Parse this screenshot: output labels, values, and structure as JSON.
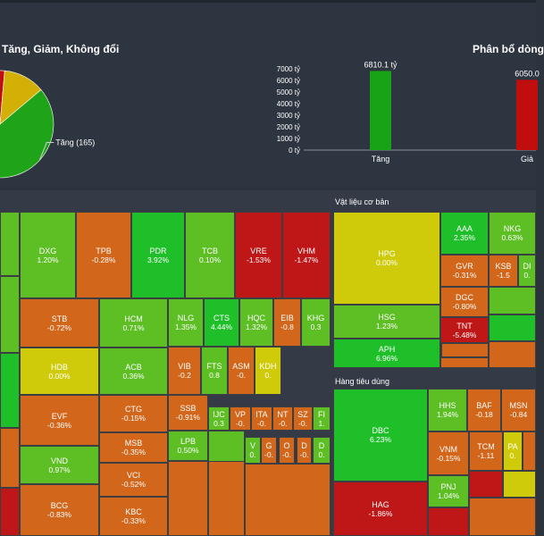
{
  "headers": {
    "pie_title": "Tăng, Giảm, Không đổi",
    "bar_title": "Phân bổ dòng",
    "sector_materials": "Vật liệu cơ bản",
    "sector_consumer": "Hàng tiêu dùng"
  },
  "colors": {
    "strong_up": "#1fbf2a",
    "up": "#5dbf24",
    "flat": "#cfcb0a",
    "down": "#d2661b",
    "strong_down": "#bf1717",
    "panel_bg": "#2d3540"
  },
  "chart_data": [
    {
      "type": "pie",
      "title": "Tăng, Giảm, Không đổi",
      "slices": [
        {
          "label": "Tăng (165)",
          "value": 165,
          "color": "#1fa419"
        },
        {
          "label": "",
          "value": 150,
          "color": "#c00d0d"
        },
        {
          "label": "",
          "value": 45,
          "color": "#d3b006"
        }
      ]
    },
    {
      "type": "bar",
      "title": "Phân bổ dòng",
      "categories": [
        "Tăng",
        "Giả"
      ],
      "values": [
        6810.1,
        6050.0
      ],
      "value_labels": [
        "6810.1 tỷ",
        "6050.0"
      ],
      "colors": [
        "#16a416",
        "#c00d0d"
      ],
      "ylim": [
        0,
        7000
      ],
      "yticks": [
        "0 tỷ",
        "1000 tỷ",
        "2000 tỷ",
        "3000 tỷ",
        "4000 tỷ",
        "5000 tỷ",
        "6000 tỷ",
        "7000 tỷ"
      ]
    },
    {
      "type": "heatmap",
      "tiles": [
        {
          "sym": "DXG",
          "pct": "1.20%",
          "tone": "up"
        },
        {
          "sym": "TPB",
          "pct": "-0.28%",
          "tone": "down"
        },
        {
          "sym": "PDR",
          "pct": "3.92%",
          "tone": "strong_up"
        },
        {
          "sym": "TCB",
          "pct": "0.10%",
          "tone": "up"
        },
        {
          "sym": "VRE",
          "pct": "-1.53%",
          "tone": "strong_down"
        },
        {
          "sym": "VHM",
          "pct": "-1.47%",
          "tone": "strong_down"
        },
        {
          "sym": "STB",
          "pct": "-0.72%",
          "tone": "down"
        },
        {
          "sym": "HCM",
          "pct": "0.71%",
          "tone": "up"
        },
        {
          "sym": "NLG",
          "pct": "1.35%",
          "tone": "up"
        },
        {
          "sym": "CTS",
          "pct": "4.44%",
          "tone": "strong_up"
        },
        {
          "sym": "HQC",
          "pct": "1.32%",
          "tone": "up"
        },
        {
          "sym": "EIB",
          "pct": "-0.8",
          "tone": "down"
        },
        {
          "sym": "KHG",
          "pct": "0.3",
          "tone": "up"
        },
        {
          "sym": "HDB",
          "pct": "0.00%",
          "tone": "flat"
        },
        {
          "sym": "ACB",
          "pct": "0.36%",
          "tone": "up"
        },
        {
          "sym": "VIB",
          "pct": "-0.2",
          "tone": "down"
        },
        {
          "sym": "FTS",
          "pct": "0.8",
          "tone": "up"
        },
        {
          "sym": "ASM",
          "pct": "-0.",
          "tone": "down"
        },
        {
          "sym": "KDH",
          "pct": "0.",
          "tone": "flat"
        },
        {
          "sym": "EVF",
          "pct": "-0.36%",
          "tone": "down"
        },
        {
          "sym": "CTG",
          "pct": "-0.15%",
          "tone": "down"
        },
        {
          "sym": "SSB",
          "pct": "-0.91%",
          "tone": "down"
        },
        {
          "sym": "IJC",
          "pct": "0.3",
          "tone": "up"
        },
        {
          "sym": "VP",
          "pct": "-0.",
          "tone": "down"
        },
        {
          "sym": "ITA",
          "pct": "-0.",
          "tone": "down"
        },
        {
          "sym": "NT",
          "pct": "-0.",
          "tone": "down"
        },
        {
          "sym": "SZ",
          "pct": "-0.",
          "tone": "down"
        },
        {
          "sym": "FI",
          "pct": "1.",
          "tone": "up"
        },
        {
          "sym": "MSB",
          "pct": "-0.35%",
          "tone": "down"
        },
        {
          "sym": "LPB",
          "pct": "0.50%",
          "tone": "up"
        },
        {
          "sym": "V",
          "pct": "0.",
          "tone": "up"
        },
        {
          "sym": "G",
          "pct": "-0.",
          "tone": "down"
        },
        {
          "sym": "O",
          "pct": "-0.",
          "tone": "down"
        },
        {
          "sym": "D",
          "pct": "-0.",
          "tone": "down"
        },
        {
          "sym": "D",
          "pct": "0.",
          "tone": "up"
        },
        {
          "sym": "VND",
          "pct": "0.97%",
          "tone": "up"
        },
        {
          "sym": "VCI",
          "pct": "-0.52%",
          "tone": "down"
        },
        {
          "sym": "BCG",
          "pct": "-0.83%",
          "tone": "down"
        },
        {
          "sym": "KBC",
          "pct": "-0.33%",
          "tone": "down"
        },
        {
          "sym": "HPG",
          "pct": "0.00%",
          "tone": "flat"
        },
        {
          "sym": "AAA",
          "pct": "2.35%",
          "tone": "strong_up"
        },
        {
          "sym": "NKG",
          "pct": "0.63%",
          "tone": "up"
        },
        {
          "sym": "GVR",
          "pct": "-0.31%",
          "tone": "down"
        },
        {
          "sym": "KSB",
          "pct": "-1.5",
          "tone": "down"
        },
        {
          "sym": "DI",
          "pct": "0.",
          "tone": "up"
        },
        {
          "sym": "HSG",
          "pct": "1.23%",
          "tone": "up"
        },
        {
          "sym": "DGC",
          "pct": "-0.80%",
          "tone": "down"
        },
        {
          "sym": "APH",
          "pct": "6.96%",
          "tone": "strong_up"
        },
        {
          "sym": "TNT",
          "pct": "-5.48%",
          "tone": "strong_down"
        },
        {
          "sym": "DBC",
          "pct": "6.23%",
          "tone": "strong_up"
        },
        {
          "sym": "HHS",
          "pct": "1.94%",
          "tone": "up"
        },
        {
          "sym": "BAF",
          "pct": "-0.18",
          "tone": "down"
        },
        {
          "sym": "MSN",
          "pct": "-0.84",
          "tone": "down"
        },
        {
          "sym": "VNM",
          "pct": "-0.15%",
          "tone": "down"
        },
        {
          "sym": "TCM",
          "pct": "-1.11",
          "tone": "down"
        },
        {
          "sym": "PA",
          "pct": "0.",
          "tone": "flat"
        },
        {
          "sym": "PNJ",
          "pct": "1.04%",
          "tone": "up"
        },
        {
          "sym": "HAG",
          "pct": "-1.86%",
          "tone": "strong_down"
        }
      ]
    }
  ]
}
